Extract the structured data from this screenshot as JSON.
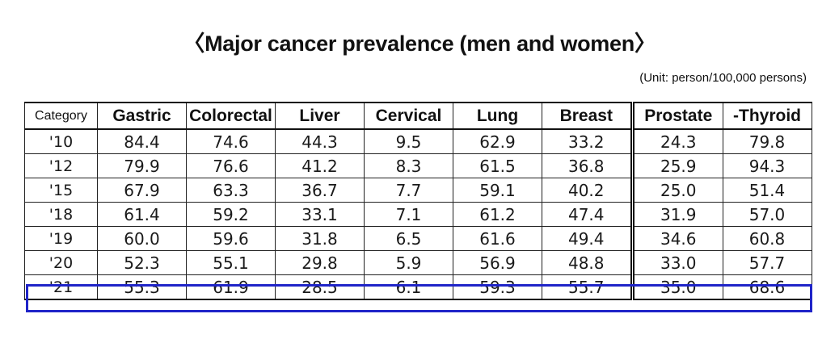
{
  "title": "〈Major cancer prevalence (men and women〉",
  "unit": "(Unit: person/100,000 persons)",
  "chart_data": {
    "type": "table",
    "title": "〈Major cancer prevalence (men and women〉",
    "category_header": "Category",
    "left_columns": [
      "Gastric",
      "Colorectal",
      "Liver",
      "Cervical",
      "Lung",
      "Breast"
    ],
    "right_columns": [
      "Prostate",
      "-Thyroid"
    ],
    "rows": [
      {
        "year": "'10",
        "left": [
          "84.4",
          "74.6",
          "44.3",
          "9.5",
          "62.9",
          "33.2"
        ],
        "right": [
          "24.3",
          "79.8"
        ]
      },
      {
        "year": "'12",
        "left": [
          "79.9",
          "76.6",
          "41.2",
          "8.3",
          "61.5",
          "36.8"
        ],
        "right": [
          "25.9",
          "94.3"
        ]
      },
      {
        "year": "'15",
        "left": [
          "67.9",
          "63.3",
          "36.7",
          "7.7",
          "59.1",
          "40.2"
        ],
        "right": [
          "25.0",
          "51.4"
        ]
      },
      {
        "year": "'18",
        "left": [
          "61.4",
          "59.2",
          "33.1",
          "7.1",
          "61.2",
          "47.4"
        ],
        "right": [
          "31.9",
          "57.0"
        ]
      },
      {
        "year": "'19",
        "left": [
          "60.0",
          "59.6",
          "31.8",
          "6.5",
          "61.6",
          "49.4"
        ],
        "right": [
          "34.6",
          "60.8"
        ]
      },
      {
        "year": "'20",
        "left": [
          "52.3",
          "55.1",
          "29.8",
          "5.9",
          "56.9",
          "48.8"
        ],
        "right": [
          "33.0",
          "57.7"
        ]
      },
      {
        "year": "'21",
        "left": [
          "55.3",
          "61.9",
          "28.5",
          "6.1",
          "59.3",
          "55.7"
        ],
        "right": [
          "35.0",
          "68.6"
        ]
      }
    ],
    "highlighted_row": "'21",
    "highlight_color": "#1f24c8"
  }
}
